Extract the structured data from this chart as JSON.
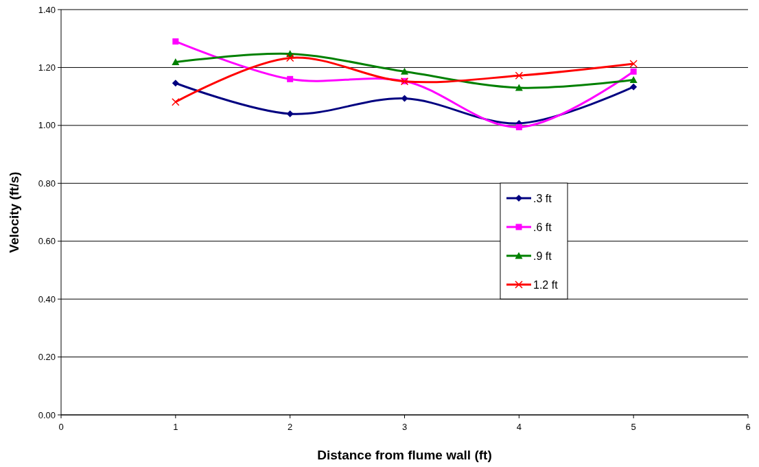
{
  "chart_data": {
    "type": "line",
    "xlabel": "Distance from flume wall (ft)",
    "ylabel": "Velocity (ft/s)",
    "x": [
      1,
      2,
      3,
      4,
      5
    ],
    "series": [
      {
        "name": ".3 ft",
        "color": "#000080",
        "marker": "diamond",
        "values": [
          1.146,
          1.04,
          1.093,
          1.007,
          1.133
        ]
      },
      {
        "name": ".6 ft",
        "color": "#ff00ff",
        "marker": "square",
        "values": [
          1.29,
          1.16,
          1.153,
          0.994,
          1.186
        ]
      },
      {
        "name": ".9 ft",
        "color": "#008000",
        "marker": "triangle",
        "values": [
          1.219,
          1.247,
          1.186,
          1.13,
          1.157
        ]
      },
      {
        "name": "1.2 ft",
        "color": "#ff0000",
        "marker": "cross",
        "values": [
          1.081,
          1.233,
          1.152,
          1.172,
          1.213
        ]
      }
    ],
    "xlim": [
      0,
      6
    ],
    "xticks": [
      0,
      1,
      2,
      3,
      4,
      5,
      6
    ],
    "ylim": [
      0,
      1.4
    ],
    "yticks": [
      {
        "value": 0,
        "label": "0.00"
      },
      {
        "value": 0.2,
        "label": "0.20"
      },
      {
        "value": 0.4,
        "label": "0.40"
      },
      {
        "value": 0.6,
        "label": "0.60"
      },
      {
        "value": 0.8,
        "label": "0.80"
      },
      {
        "value": 1.0,
        "label": "1.00"
      },
      {
        "value": 1.2,
        "label": "1.20"
      },
      {
        "value": 1.4,
        "label": "1.40"
      }
    ],
    "grid": "y",
    "legend": "right"
  }
}
